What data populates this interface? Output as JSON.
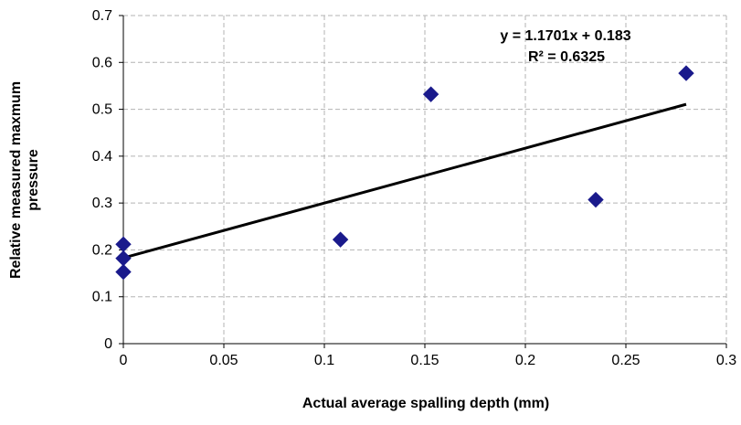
{
  "chart_data": {
    "type": "scatter",
    "title": "",
    "xlabel": "Actual average spalling depth (mm)",
    "ylabel_lines": [
      "Relative measured maxmum",
      "pressure"
    ],
    "xlim": [
      0,
      0.3
    ],
    "ylim": [
      0,
      0.7
    ],
    "x_ticks": [
      0,
      0.05,
      0.1,
      0.15,
      0.2,
      0.25,
      0.3
    ],
    "x_tick_labels": [
      "0",
      "0.05",
      "0.1",
      "0.15",
      "0.2",
      "0.25",
      "0.3"
    ],
    "y_ticks": [
      0,
      0.1,
      0.2,
      0.3,
      0.4,
      0.5,
      0.6,
      0.7
    ],
    "y_tick_labels": [
      "0",
      "0.1",
      "0.2",
      "0.3",
      "0.4",
      "0.5",
      "0.6",
      "0.7"
    ],
    "grid": true,
    "grid_style": "dashed",
    "marker": "diamond",
    "series": [
      {
        "points": [
          {
            "x": 0,
            "y": 0.212
          },
          {
            "x": 0,
            "y": 0.182
          },
          {
            "x": 0,
            "y": 0.153
          },
          {
            "x": 0.108,
            "y": 0.222
          },
          {
            "x": 0.153,
            "y": 0.532
          },
          {
            "x": 0.235,
            "y": 0.307
          },
          {
            "x": 0.28,
            "y": 0.577
          }
        ],
        "color": "#1a1a8c"
      }
    ],
    "trendline": {
      "slope": 1.1701,
      "intercept": 0.183,
      "x_range": [
        0,
        0.28
      ],
      "color": "#000000"
    },
    "annotations": {
      "equation": "y = 1.1701x + 0.183",
      "r_squared": "R² = 0.6325"
    }
  }
}
